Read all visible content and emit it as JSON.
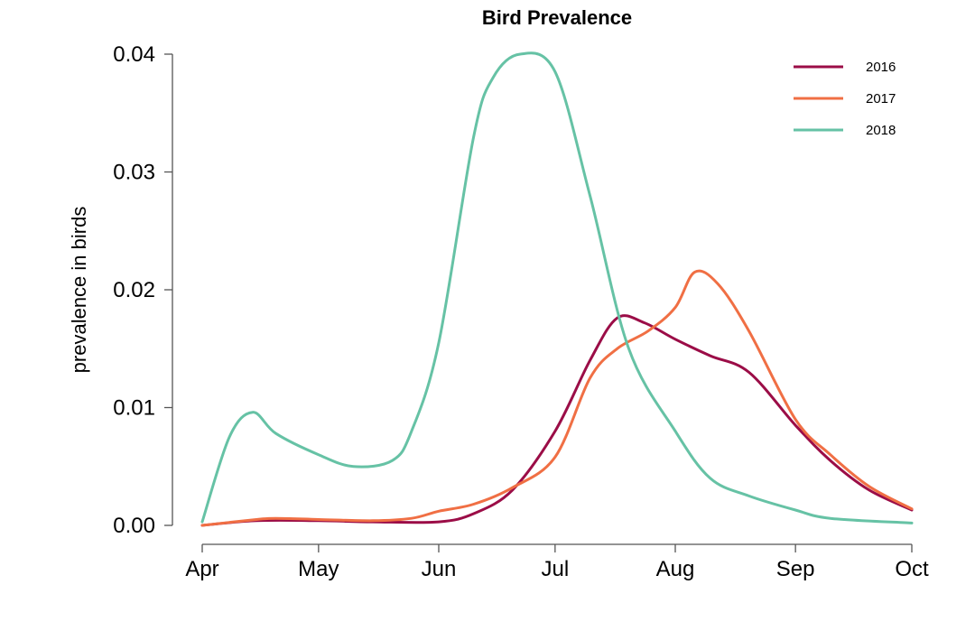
{
  "chart_data": {
    "type": "line",
    "title": "Bird Prevalence",
    "xlabel": "",
    "ylabel": "prevalence in birds",
    "xlim": [
      "Apr",
      "Oct"
    ],
    "ylim": [
      0,
      0.04
    ],
    "x_ticks": [
      "Apr",
      "May",
      "Jun",
      "Jul",
      "Aug",
      "Sep",
      "Oct"
    ],
    "y_ticks": [
      "0.00",
      "0.01",
      "0.02",
      "0.03",
      "0.04"
    ],
    "grid": false,
    "legend_position": "top-right",
    "series": [
      {
        "name": "2016",
        "color": "#9b0d47",
        "points": [
          [
            "Apr",
            0.0
          ],
          [
            "Apr 15",
            0.0004
          ],
          [
            "May",
            0.0004
          ],
          [
            "May 15",
            0.0003
          ],
          [
            "Jun",
            0.0003
          ],
          [
            "Jun 10",
            0.001
          ],
          [
            "Jun 20",
            0.003
          ],
          [
            "Jul",
            0.008
          ],
          [
            "Jul 10",
            0.014
          ],
          [
            "Jul 17",
            0.0176
          ],
          [
            "Jul 24",
            0.0172
          ],
          [
            "Aug",
            0.0158
          ],
          [
            "Aug 10",
            0.0144
          ],
          [
            "Aug 20",
            0.013
          ],
          [
            "Sep",
            0.0085
          ],
          [
            "Sep 10",
            0.0055
          ],
          [
            "Sep 20",
            0.003
          ],
          [
            "Oct",
            0.0013
          ]
        ]
      },
      {
        "name": "2017",
        "color": "#f06f44",
        "points": [
          [
            "Apr",
            0.0
          ],
          [
            "Apr 15",
            0.0005
          ],
          [
            "Apr 20",
            0.0006
          ],
          [
            "May",
            0.0005
          ],
          [
            "May 15",
            0.0004
          ],
          [
            "May 25",
            0.0006
          ],
          [
            "Jun",
            0.0012
          ],
          [
            "Jun 10",
            0.0018
          ],
          [
            "Jun 20",
            0.0032
          ],
          [
            "Jul",
            0.0058
          ],
          [
            "Jul 10",
            0.0125
          ],
          [
            "Jul 17",
            0.015
          ],
          [
            "Jul 25",
            0.0165
          ],
          [
            "Aug",
            0.0185
          ],
          [
            "Aug 6",
            0.0215
          ],
          [
            "Aug 12",
            0.0205
          ],
          [
            "Aug 20",
            0.0165
          ],
          [
            "Sep",
            0.009
          ],
          [
            "Sep 10",
            0.006
          ],
          [
            "Sep 20",
            0.0033
          ],
          [
            "Oct",
            0.0014
          ]
        ]
      },
      {
        "name": "2018",
        "color": "#66c2a5",
        "points": [
          [
            "Apr",
            0.0003
          ],
          [
            "Apr 8",
            0.0075
          ],
          [
            "Apr 14",
            0.0096
          ],
          [
            "Apr 20",
            0.0078
          ],
          [
            "May",
            0.006
          ],
          [
            "May 10",
            0.005
          ],
          [
            "May 20",
            0.0055
          ],
          [
            "May 25",
            0.008
          ],
          [
            "Jun",
            0.0155
          ],
          [
            "Jun 10",
            0.033
          ],
          [
            "Jun 15",
            0.038
          ],
          [
            "Jun 22",
            0.04
          ],
          [
            "Jul",
            0.0385
          ],
          [
            "Jul 10",
            0.028
          ],
          [
            "Jul 20",
            0.015
          ],
          [
            "Aug",
            0.008
          ],
          [
            "Aug 10",
            0.004
          ],
          [
            "Aug 20",
            0.0025
          ],
          [
            "Sep",
            0.0013
          ],
          [
            "Sep 10",
            0.0006
          ],
          [
            "Oct",
            0.0002
          ]
        ]
      }
    ]
  }
}
